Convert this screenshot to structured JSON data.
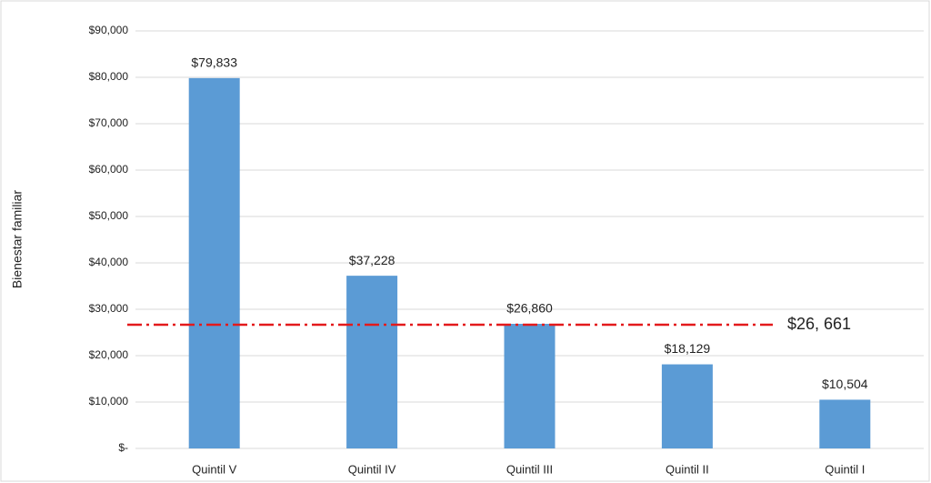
{
  "chart_data": {
    "type": "bar",
    "y_axis_label": "Bienestar familiar",
    "categories": [
      "Quintil V",
      "Quintil IV",
      "Quintil III",
      "Quintil II",
      "Quintil I"
    ],
    "values": [
      79833,
      37228,
      26860,
      18129,
      10504
    ],
    "value_labels": [
      "$79,833",
      "$37,228",
      "$26,860",
      "$18,129",
      "$10,504"
    ],
    "color": "#5b9bd5",
    "ylim": [
      0,
      90000
    ],
    "yticks": [
      {
        "value": 0,
        "label": "$-"
      },
      {
        "value": 10000,
        "label": "$10,000"
      },
      {
        "value": 20000,
        "label": "$20,000"
      },
      {
        "value": 30000,
        "label": "$30,000"
      },
      {
        "value": 40000,
        "label": "$40,000"
      },
      {
        "value": 50000,
        "label": "$50,000"
      },
      {
        "value": 60000,
        "label": "$60,000"
      },
      {
        "value": 70000,
        "label": "$70,000"
      },
      {
        "value": 80000,
        "label": "$80,000"
      },
      {
        "value": 90000,
        "label": "$90,000"
      }
    ],
    "grid": true,
    "reference_line": {
      "value": 26661,
      "label": "$26, 661",
      "color": "#e31a1c"
    }
  }
}
